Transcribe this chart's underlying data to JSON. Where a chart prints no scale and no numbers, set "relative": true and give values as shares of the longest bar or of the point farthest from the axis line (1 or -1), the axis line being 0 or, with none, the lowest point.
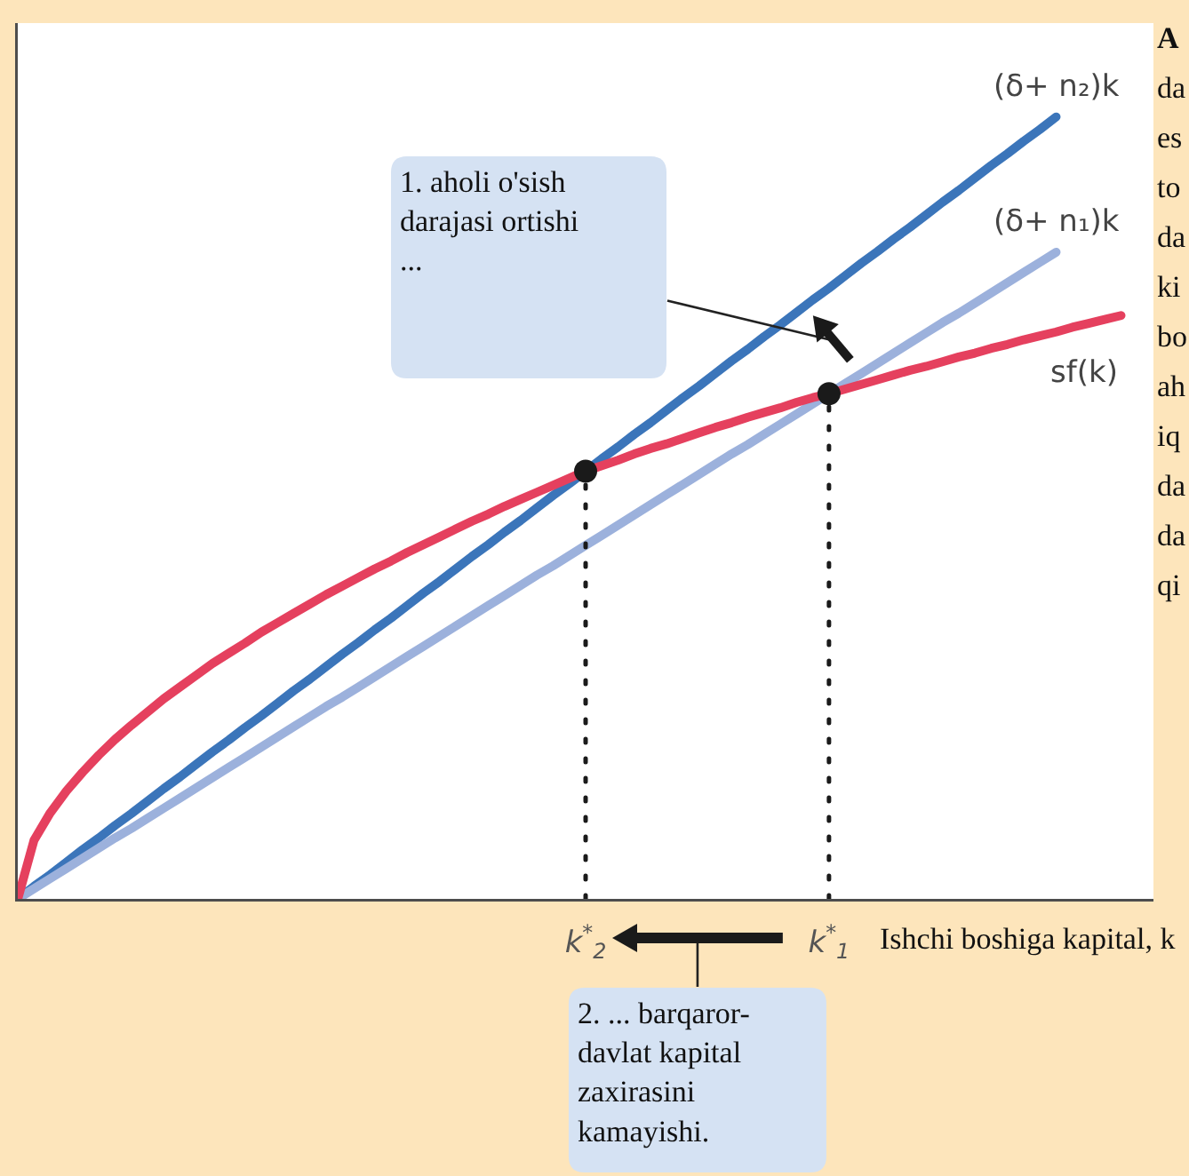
{
  "chart_data": {
    "type": "line",
    "relative": true,
    "xlabel": "Ishchi boshiga kapital, k",
    "categories": [
      null,
      null,
      null,
      null,
      null,
      null,
      null,
      null,
      null,
      null,
      null,
      null,
      null,
      null,
      null,
      null,
      null,
      null,
      null,
      null,
      null,
      null,
      null,
      null,
      null,
      null,
      null,
      null,
      null,
      null,
      null,
      null,
      null,
      null,
      null,
      "k$^{*}$$_{2}$",
      null,
      null,
      null,
      null,
      null,
      null,
      null,
      null,
      null,
      null,
      null,
      null,
      null,
      null,
      "k$^{*}$$_{1}$",
      null,
      null,
      null,
      null,
      null,
      null,
      null,
      null,
      null,
      null,
      null,
      null,
      null,
      null,
      null,
      null,
      null,
      null,
      null,
      null
    ],
    "series": [
      {
        "name": "(δ+ n₂)k",
        "color": "#3b75ba",
        "values": [
          0,
          0.016,
          0.031,
          0.047,
          0.063,
          0.078,
          0.094,
          0.109,
          0.125,
          0.141,
          0.156,
          0.172,
          0.188,
          0.203,
          0.219,
          0.234,
          0.25,
          0.266,
          0.281,
          0.297,
          0.313,
          0.328,
          0.344,
          0.359,
          0.375,
          0.391,
          0.406,
          0.422,
          0.438,
          0.453,
          0.469,
          0.484,
          0.5,
          0.516,
          0.531,
          0.547,
          0.563,
          0.578,
          0.594,
          0.609,
          0.625,
          0.641,
          0.656,
          0.672,
          0.688,
          0.703,
          0.719,
          0.734,
          0.75,
          0.766,
          0.781,
          0.797,
          0.813,
          0.828,
          0.844,
          0.859,
          0.875,
          0.891,
          0.906,
          0.922,
          0.938,
          0.953,
          0.969,
          0.984,
          1,
          null,
          null,
          null,
          null,
          null,
          null
        ]
      },
      {
        "name": "(δ+ n₁)k",
        "color": "#9cb1dc",
        "values": [
          0,
          0.013,
          0.026,
          0.039,
          0.052,
          0.065,
          0.078,
          0.09,
          0.103,
          0.116,
          0.129,
          0.142,
          0.155,
          0.168,
          0.181,
          0.194,
          0.207,
          0.22,
          0.233,
          0.246,
          0.258,
          0.271,
          0.284,
          0.297,
          0.31,
          0.323,
          0.336,
          0.349,
          0.362,
          0.375,
          0.388,
          0.401,
          0.414,
          0.426,
          0.439,
          0.452,
          0.465,
          0.478,
          0.491,
          0.504,
          0.517,
          0.53,
          0.543,
          0.556,
          0.569,
          0.581,
          0.594,
          0.607,
          0.62,
          0.633,
          0.646,
          0.659,
          0.672,
          0.685,
          0.698,
          0.711,
          0.724,
          0.737,
          0.749,
          0.762,
          0.775,
          0.788,
          0.801,
          0.814,
          0.827,
          null,
          null,
          null,
          null,
          null,
          null
        ]
      },
      {
        "name": "sf(k)",
        "color": "#e5405e",
        "values": [
          0,
          0.075,
          0.11,
          0.138,
          0.162,
          0.184,
          0.204,
          0.222,
          0.239,
          0.256,
          0.271,
          0.286,
          0.301,
          0.314,
          0.327,
          0.341,
          0.353,
          0.365,
          0.377,
          0.389,
          0.4,
          0.411,
          0.422,
          0.432,
          0.443,
          0.453,
          0.463,
          0.473,
          0.483,
          0.492,
          0.502,
          0.511,
          0.52,
          0.529,
          0.538,
          0.547,
          0.554,
          0.561,
          0.569,
          0.576,
          0.582,
          0.589,
          0.596,
          0.603,
          0.609,
          0.616,
          0.622,
          0.628,
          0.635,
          0.641,
          0.646,
          0.652,
          0.658,
          0.664,
          0.67,
          0.676,
          0.681,
          0.687,
          0.693,
          0.698,
          0.704,
          0.709,
          0.715,
          0.72,
          0.725,
          0.731,
          0.736,
          0.741,
          0.746,
          null,
          null
        ]
      },
      {
        "type": "lollipop",
        "color": "#1a1a1a",
        "line_style": "dotted",
        "values": [
          null,
          null,
          null,
          null,
          null,
          null,
          null,
          null,
          null,
          null,
          null,
          null,
          null,
          null,
          null,
          null,
          null,
          null,
          null,
          null,
          null,
          null,
          null,
          null,
          null,
          null,
          null,
          null,
          null,
          null,
          null,
          null,
          null,
          null,
          null,
          0.547,
          null,
          null,
          null,
          null,
          null,
          null,
          null,
          null,
          null,
          null,
          null,
          null,
          null,
          null,
          0.646,
          null,
          null,
          null,
          null,
          null,
          null,
          null,
          null,
          null,
          null,
          null,
          null,
          null,
          null,
          null,
          null,
          null,
          null,
          null,
          null
        ]
      }
    ],
    "annotations": [
      "1. aholi o'sish darajasi ortishi ...",
      "2. ... barqaror-davlat kapital zaxirasini kamayishi.",
      "A\nda\nes\nto\nda\nki\nbo\nah\niq\nda\nda\nqi"
    ]
  }
}
